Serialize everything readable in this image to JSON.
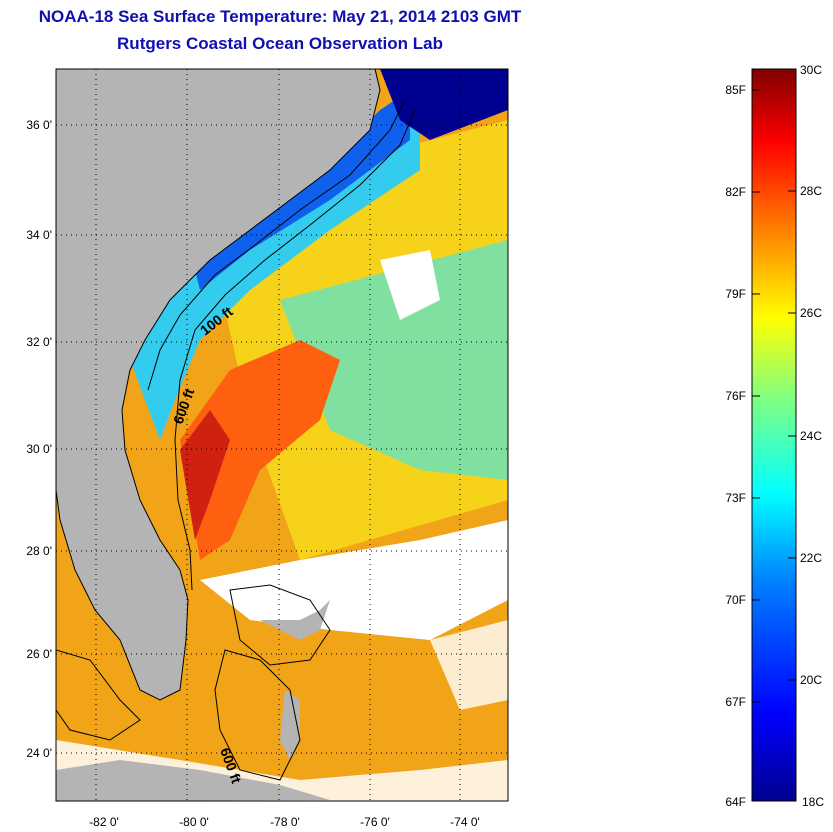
{
  "header": {
    "title": "NOAA-18 Sea Surface Temperature:  May 21, 2014 2103 GMT",
    "subtitle": "Rutgers Coastal Ocean Observation Lab"
  },
  "map": {
    "lat_labels": [
      "36 0'",
      "34 0'",
      "32 0'",
      "30 0'",
      "28 0'",
      "26 0'",
      "24 0'"
    ],
    "lon_labels": [
      "-82 0'",
      "-80 0'",
      "-78 0'",
      "-76 0'",
      "-74 0'"
    ],
    "contour_labels": [
      "100 ft",
      "600 ft",
      "600 ft"
    ],
    "land_color": "#b4b4b4",
    "cloud_color": "#ffffff"
  },
  "colorbar": {
    "fahrenheit_labels": [
      "85F",
      "82F",
      "79F",
      "76F",
      "73F",
      "70F",
      "67F",
      "64F"
    ],
    "celsius_labels": [
      "30C",
      "28C",
      "26C",
      "24C",
      "22C",
      "20C",
      "18C"
    ],
    "palette": [
      "#00008f",
      "#0000ff",
      "#0080ff",
      "#00ffff",
      "#80ff80",
      "#ffff00",
      "#ff8000",
      "#ff0000",
      "#800000"
    ]
  }
}
